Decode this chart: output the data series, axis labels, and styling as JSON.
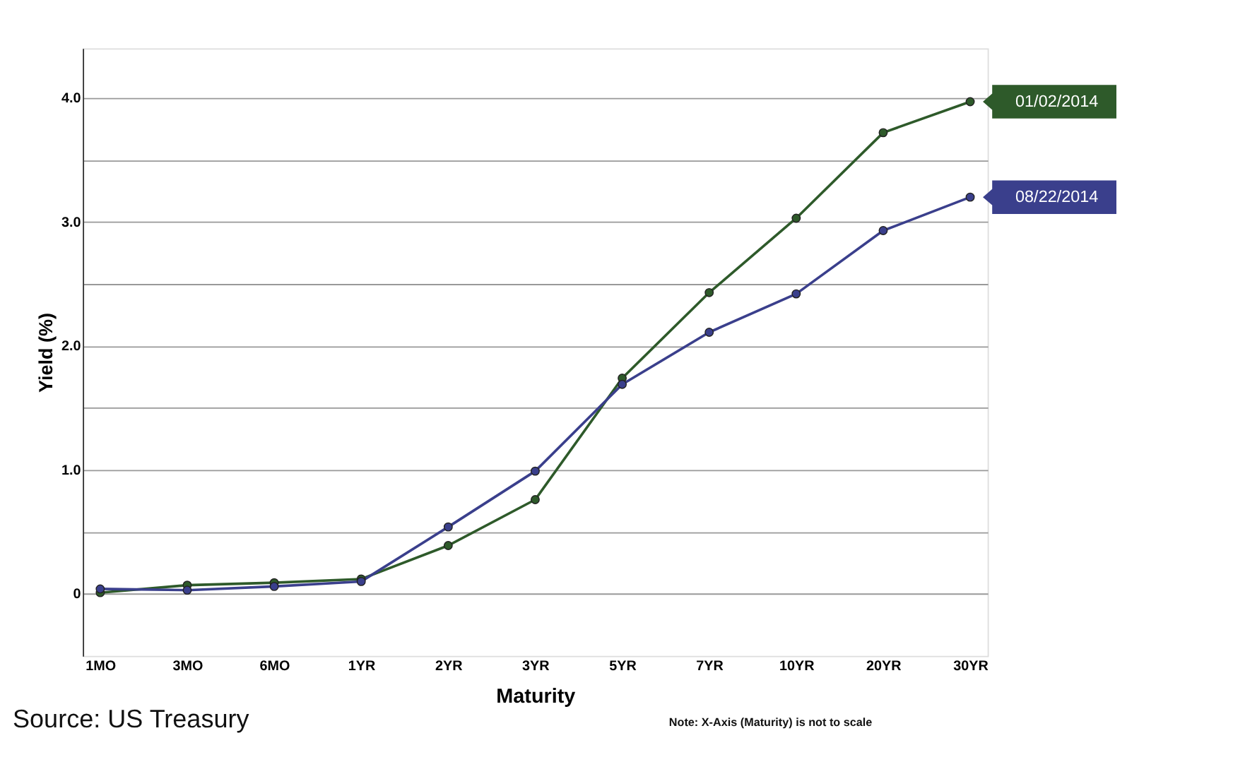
{
  "chart_data": {
    "type": "line",
    "categories": [
      "1MO",
      "3MO",
      "6MO",
      "1YR",
      "2YR",
      "3YR",
      "5YR",
      "7YR",
      "10YR",
      "20YR",
      "30YR"
    ],
    "series": [
      {
        "name": "01/02/2014",
        "color": "#2e5a2a",
        "values": [
          0.01,
          0.07,
          0.09,
          0.12,
          0.39,
          0.76,
          1.74,
          2.43,
          3.03,
          3.72,
          3.97
        ]
      },
      {
        "name": "08/22/2014",
        "color": "#3a3f8c",
        "values": [
          0.04,
          0.03,
          0.06,
          0.1,
          0.54,
          0.99,
          1.69,
          2.11,
          2.42,
          2.93,
          3.2
        ]
      }
    ],
    "xlabel": "Maturity",
    "ylabel": "Yield (%)",
    "ylim": [
      -0.5,
      4.4
    ],
    "yticks": [
      0,
      {
        "value": 0.5,
        "label": null
      },
      {
        "value": 1,
        "label": "1.0"
      },
      {
        "value": 1.5,
        "label": null
      },
      {
        "value": 2,
        "label": "2.0"
      },
      {
        "value": 2.5,
        "label": null
      },
      {
        "value": 3,
        "label": "3.0"
      },
      {
        "value": 3.5,
        "label": null
      },
      {
        "value": 4,
        "label": "4.0"
      }
    ],
    "grid": "y",
    "marker": "circle",
    "line_style": "solid",
    "annotations": [
      "Source:  US Treasury",
      "Note: X-Axis (Maturity) is not to scale"
    ]
  }
}
